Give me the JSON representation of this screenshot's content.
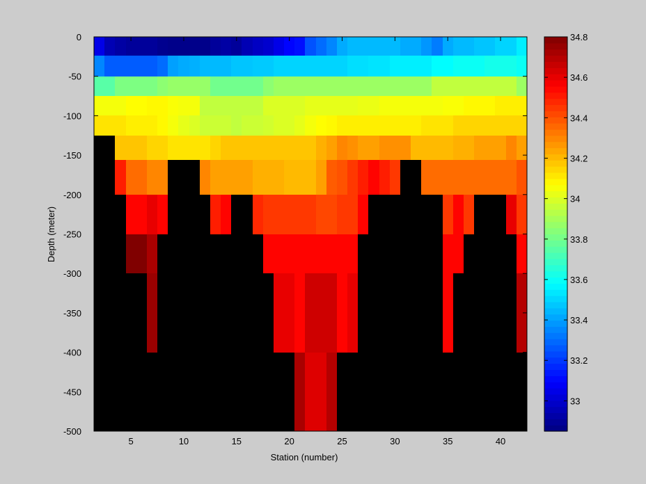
{
  "chart_data": {
    "type": "heatmap",
    "xlabel": "Station (number)",
    "ylabel": "Depth (meter)",
    "x_ticks": [
      5,
      10,
      15,
      20,
      25,
      30,
      35,
      40
    ],
    "y_ticks": [
      0,
      -50,
      -100,
      -150,
      -200,
      -250,
      -300,
      -350,
      -400,
      -450,
      -500
    ],
    "xlim": [
      1.5,
      42.5
    ],
    "ylim": [
      -500,
      0
    ],
    "x": [
      2,
      3,
      4,
      5,
      6,
      7,
      8,
      9,
      10,
      11,
      12,
      13,
      14,
      15,
      16,
      17,
      18,
      19,
      20,
      21,
      22,
      23,
      24,
      25,
      26,
      27,
      28,
      29,
      30,
      31,
      32,
      33,
      34,
      35,
      36,
      37,
      38,
      39,
      40,
      41,
      42
    ],
    "depth_levels": [
      -10,
      -37.5,
      -62.5,
      -87.5,
      -112.5,
      -137.5,
      -175,
      -225,
      -275,
      -325,
      -375,
      -425,
      -475
    ],
    "missing_color": "#000000",
    "colorbar": {
      "ticks": [
        33,
        33.2,
        33.4,
        33.6,
        33.8,
        34,
        34.2,
        34.4,
        34.6,
        34.8
      ],
      "clim": [
        32.85,
        34.8
      ],
      "colormap": "jet"
    },
    "rows": [
      [
        33.05,
        32.95,
        32.92,
        32.9,
        32.9,
        32.9,
        32.88,
        32.87,
        32.87,
        32.87,
        32.87,
        32.9,
        32.92,
        32.9,
        32.95,
        32.98,
        33.0,
        33.05,
        33.1,
        33.12,
        33.25,
        33.3,
        33.35,
        33.42,
        33.45,
        33.45,
        33.45,
        33.45,
        33.45,
        33.42,
        33.42,
        33.38,
        33.33,
        33.42,
        33.45,
        33.45,
        33.47,
        33.47,
        33.5,
        33.5,
        33.55
      ],
      [
        33.35,
        33.27,
        33.27,
        33.27,
        33.27,
        33.27,
        33.3,
        33.4,
        33.42,
        33.43,
        33.45,
        33.45,
        33.45,
        33.47,
        33.47,
        33.48,
        33.48,
        33.5,
        33.5,
        33.5,
        33.5,
        33.5,
        33.5,
        33.5,
        33.52,
        33.52,
        33.53,
        33.53,
        33.55,
        33.55,
        33.55,
        33.55,
        33.58,
        33.58,
        33.6,
        33.6,
        33.6,
        33.62,
        33.62,
        33.62,
        33.6
      ],
      [
        33.75,
        33.75,
        33.82,
        33.82,
        33.82,
        33.82,
        33.85,
        33.87,
        33.87,
        33.87,
        33.87,
        33.8,
        33.8,
        33.8,
        33.8,
        33.8,
        33.85,
        33.88,
        33.88,
        33.88,
        33.88,
        33.88,
        33.88,
        33.88,
        33.88,
        33.88,
        33.88,
        33.88,
        33.88,
        33.88,
        33.88,
        33.88,
        33.95,
        33.95,
        33.95,
        33.95,
        33.95,
        33.95,
        33.95,
        33.95,
        33.88
      ],
      [
        34.05,
        34.05,
        34.05,
        34.07,
        34.07,
        34.08,
        34.08,
        34.06,
        34.05,
        34.05,
        33.95,
        33.95,
        33.95,
        33.95,
        33.95,
        33.95,
        34.0,
        34.0,
        34.0,
        34.0,
        34.02,
        34.02,
        34.02,
        34.02,
        34.02,
        34.03,
        34.03,
        34.05,
        34.05,
        34.05,
        34.05,
        34.05,
        34.05,
        34.06,
        34.06,
        34.08,
        34.08,
        34.08,
        34.1,
        34.1,
        34.1
      ],
      [
        34.12,
        34.12,
        34.12,
        34.1,
        34.1,
        34.1,
        34.08,
        34.05,
        34.02,
        34.0,
        33.97,
        33.97,
        33.97,
        33.95,
        33.97,
        33.97,
        33.98,
        34.0,
        34.0,
        34.02,
        34.05,
        34.07,
        34.08,
        34.1,
        34.1,
        34.1,
        34.1,
        34.1,
        34.1,
        34.1,
        34.1,
        34.12,
        34.12,
        34.12,
        34.15,
        34.15,
        34.15,
        34.15,
        34.15,
        34.15,
        34.15
      ],
      [
        null,
        null,
        34.18,
        34.18,
        34.18,
        34.15,
        34.15,
        34.12,
        34.12,
        34.12,
        34.12,
        34.15,
        34.18,
        34.18,
        34.18,
        34.18,
        34.18,
        34.18,
        34.18,
        34.18,
        34.18,
        34.22,
        34.25,
        34.3,
        34.28,
        34.25,
        34.25,
        34.28,
        34.28,
        34.28,
        34.2,
        34.2,
        34.2,
        34.2,
        34.22,
        34.22,
        34.25,
        34.25,
        34.25,
        34.3,
        34.25
      ],
      [
        null,
        null,
        34.5,
        34.35,
        34.35,
        34.3,
        34.3,
        null,
        null,
        null,
        34.3,
        34.25,
        34.25,
        34.25,
        34.25,
        34.22,
        34.22,
        34.22,
        34.2,
        34.2,
        34.2,
        34.25,
        34.38,
        34.4,
        34.45,
        34.5,
        34.55,
        34.5,
        34.45,
        null,
        null,
        34.35,
        34.35,
        34.35,
        34.35,
        34.35,
        34.35,
        34.35,
        34.35,
        34.35,
        34.4
      ],
      [
        null,
        null,
        null,
        34.55,
        34.55,
        34.6,
        34.55,
        null,
        null,
        null,
        null,
        34.5,
        34.55,
        null,
        null,
        34.48,
        34.45,
        34.45,
        34.45,
        34.45,
        34.45,
        34.42,
        34.42,
        34.45,
        34.45,
        34.55,
        null,
        null,
        null,
        null,
        null,
        null,
        null,
        34.45,
        34.55,
        34.45,
        null,
        null,
        null,
        34.6,
        34.45
      ],
      [
        null,
        null,
        null,
        34.8,
        34.8,
        34.72,
        null,
        null,
        null,
        null,
        null,
        null,
        null,
        null,
        null,
        null,
        34.55,
        34.55,
        34.55,
        34.55,
        34.55,
        34.55,
        34.55,
        34.55,
        34.55,
        null,
        null,
        null,
        null,
        null,
        null,
        null,
        null,
        34.55,
        34.55,
        null,
        null,
        null,
        null,
        null,
        34.55
      ],
      [
        null,
        null,
        null,
        null,
        null,
        34.75,
        null,
        null,
        null,
        null,
        null,
        null,
        null,
        null,
        null,
        null,
        null,
        34.6,
        34.6,
        34.55,
        34.65,
        34.65,
        34.65,
        34.55,
        34.6,
        null,
        null,
        null,
        null,
        null,
        null,
        null,
        null,
        34.55,
        null,
        null,
        null,
        null,
        null,
        null,
        34.7
      ],
      [
        null,
        null,
        null,
        null,
        null,
        34.75,
        null,
        null,
        null,
        null,
        null,
        null,
        null,
        null,
        null,
        null,
        null,
        34.6,
        34.6,
        34.55,
        34.65,
        34.65,
        34.65,
        34.55,
        34.6,
        null,
        null,
        null,
        null,
        null,
        null,
        null,
        null,
        34.55,
        null,
        null,
        null,
        null,
        null,
        null,
        34.7
      ],
      [
        null,
        null,
        null,
        null,
        null,
        null,
        null,
        null,
        null,
        null,
        null,
        null,
        null,
        null,
        null,
        null,
        null,
        null,
        null,
        34.72,
        34.62,
        34.62,
        34.7,
        null,
        null,
        null,
        null,
        null,
        null,
        null,
        null,
        null,
        null,
        null,
        null,
        null,
        null,
        null,
        null,
        null,
        null
      ],
      [
        null,
        null,
        null,
        null,
        null,
        null,
        null,
        null,
        null,
        null,
        null,
        null,
        null,
        null,
        null,
        null,
        null,
        null,
        null,
        34.72,
        34.62,
        34.62,
        34.7,
        null,
        null,
        null,
        null,
        null,
        null,
        null,
        null,
        null,
        null,
        null,
        null,
        null,
        null,
        null,
        null,
        null,
        null
      ]
    ]
  }
}
